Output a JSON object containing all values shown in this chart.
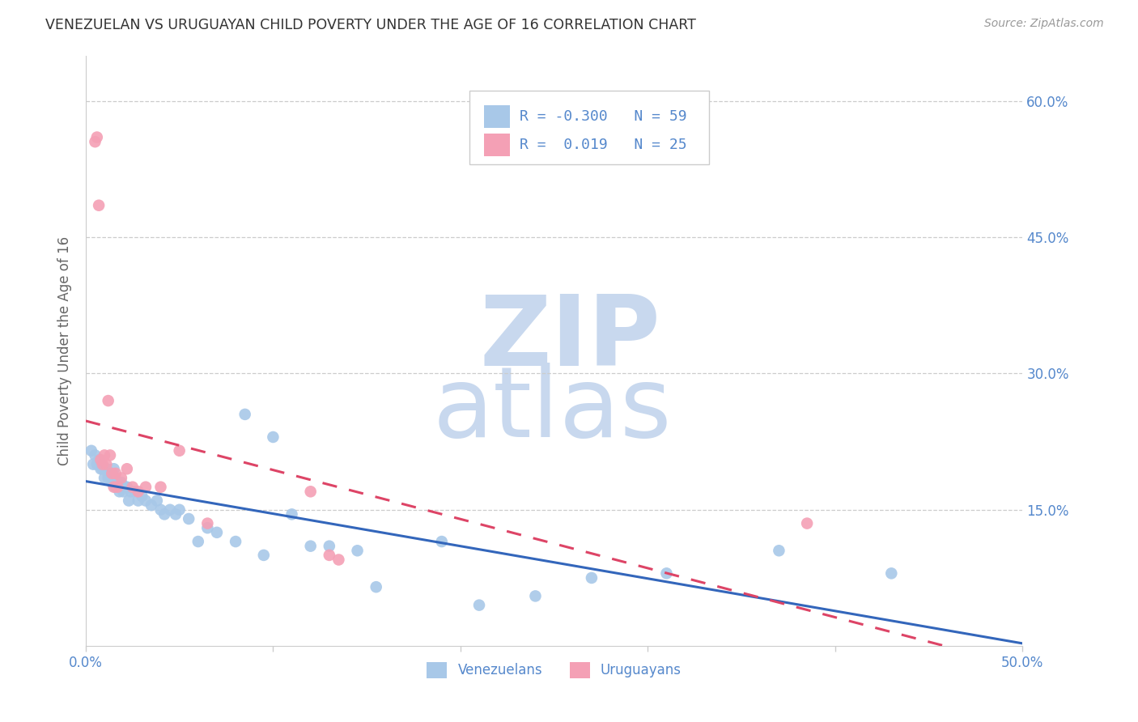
{
  "title": "VENEZUELAN VS URUGUAYAN CHILD POVERTY UNDER THE AGE OF 16 CORRELATION CHART",
  "source": "Source: ZipAtlas.com",
  "ylabel": "Child Poverty Under the Age of 16",
  "xlim": [
    0.0,
    0.5
  ],
  "ylim": [
    0.0,
    0.65
  ],
  "yticks": [
    0.15,
    0.3,
    0.45,
    0.6
  ],
  "ytick_labels": [
    "15.0%",
    "30.0%",
    "45.0%",
    "60.0%"
  ],
  "xticks": [
    0.0,
    0.1,
    0.2,
    0.3,
    0.4,
    0.5
  ],
  "xtick_labels": [
    "0.0%",
    "",
    "",
    "",
    "",
    "50.0%"
  ],
  "venezuelan_color": "#a8c8e8",
  "uruguayan_color": "#f4a0b5",
  "venezuelan_line_color": "#3366bb",
  "uruguayan_line_color": "#dd4466",
  "background_color": "#ffffff",
  "grid_color": "#cccccc",
  "title_color": "#333333",
  "label_color": "#5588cc",
  "legend_r_ven": "-0.300",
  "legend_n_ven": "59",
  "legend_r_uru": "0.019",
  "legend_n_uru": "25",
  "venezuelan_x": [
    0.003,
    0.004,
    0.005,
    0.006,
    0.007,
    0.008,
    0.008,
    0.009,
    0.01,
    0.01,
    0.011,
    0.012,
    0.012,
    0.013,
    0.013,
    0.014,
    0.015,
    0.015,
    0.016,
    0.017,
    0.018,
    0.018,
    0.019,
    0.02,
    0.021,
    0.022,
    0.023,
    0.024,
    0.026,
    0.028,
    0.03,
    0.032,
    0.035,
    0.038,
    0.04,
    0.042,
    0.045,
    0.048,
    0.05,
    0.055,
    0.06,
    0.065,
    0.07,
    0.08,
    0.085,
    0.095,
    0.1,
    0.11,
    0.12,
    0.13,
    0.145,
    0.155,
    0.19,
    0.21,
    0.24,
    0.27,
    0.31,
    0.37,
    0.43
  ],
  "venezuelan_y": [
    0.215,
    0.2,
    0.21,
    0.2,
    0.205,
    0.195,
    0.2,
    0.195,
    0.195,
    0.185,
    0.195,
    0.19,
    0.185,
    0.19,
    0.185,
    0.18,
    0.195,
    0.185,
    0.175,
    0.18,
    0.175,
    0.17,
    0.18,
    0.17,
    0.175,
    0.175,
    0.16,
    0.17,
    0.17,
    0.16,
    0.165,
    0.16,
    0.155,
    0.16,
    0.15,
    0.145,
    0.15,
    0.145,
    0.15,
    0.14,
    0.115,
    0.13,
    0.125,
    0.115,
    0.255,
    0.1,
    0.23,
    0.145,
    0.11,
    0.11,
    0.105,
    0.065,
    0.115,
    0.045,
    0.055,
    0.075,
    0.08,
    0.105,
    0.08
  ],
  "uruguayan_x": [
    0.005,
    0.006,
    0.007,
    0.008,
    0.009,
    0.01,
    0.011,
    0.012,
    0.013,
    0.014,
    0.015,
    0.016,
    0.017,
    0.019,
    0.022,
    0.025,
    0.028,
    0.032,
    0.04,
    0.05,
    0.065,
    0.12,
    0.13,
    0.135,
    0.385
  ],
  "uruguayan_y": [
    0.555,
    0.56,
    0.485,
    0.205,
    0.2,
    0.21,
    0.2,
    0.27,
    0.21,
    0.19,
    0.175,
    0.19,
    0.175,
    0.185,
    0.195,
    0.175,
    0.17,
    0.175,
    0.175,
    0.215,
    0.135,
    0.17,
    0.1,
    0.095,
    0.135
  ],
  "watermark_zip_color": "#c8d8ee",
  "watermark_atlas_color": "#c8d8ee"
}
